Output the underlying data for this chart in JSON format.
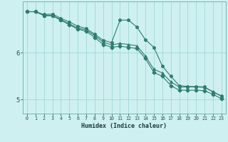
{
  "xlabel": "Humidex (Indice chaleur)",
  "x_values": [
    0,
    1,
    2,
    3,
    4,
    5,
    6,
    7,
    8,
    9,
    10,
    11,
    12,
    13,
    14,
    15,
    16,
    17,
    18,
    19,
    20,
    21,
    22,
    23
  ],
  "line1": [
    6.88,
    6.88,
    6.82,
    6.83,
    6.74,
    6.66,
    6.57,
    6.52,
    6.4,
    6.27,
    6.22,
    6.7,
    6.7,
    6.55,
    6.28,
    6.12,
    5.72,
    5.5,
    5.3,
    5.28,
    5.28,
    5.27,
    5.16,
    5.08
  ],
  "line2": [
    6.88,
    6.88,
    6.8,
    6.8,
    6.71,
    6.62,
    6.53,
    6.49,
    6.37,
    6.23,
    6.17,
    6.2,
    6.18,
    6.15,
    5.93,
    5.65,
    5.57,
    5.38,
    5.27,
    5.27,
    5.27,
    5.26,
    5.17,
    5.07
  ],
  "line3": [
    6.88,
    6.88,
    6.8,
    6.79,
    6.7,
    6.6,
    6.51,
    6.46,
    6.33,
    6.18,
    6.12,
    6.14,
    6.12,
    6.09,
    5.88,
    5.58,
    5.5,
    5.3,
    5.2,
    5.2,
    5.2,
    5.19,
    5.11,
    5.02
  ],
  "bg_color": "#cff0f0",
  "line_color": "#2e7d6e",
  "grid_color": "#a0d8d8",
  "yticks": [
    5,
    6
  ],
  "ylim": [
    4.7,
    7.1
  ],
  "xlim": [
    -0.5,
    23.5
  ],
  "marker_size": 2.5
}
